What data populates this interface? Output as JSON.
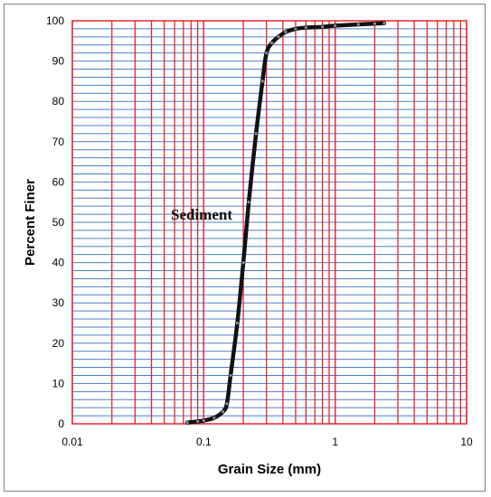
{
  "chart_data": {
    "type": "line",
    "xlabel": "Grain Size (mm)",
    "ylabel": "Percent Finer",
    "xscale": "log",
    "xlim": [
      0.01,
      10
    ],
    "ylim": [
      0,
      100
    ],
    "xticks": [
      0.01,
      0.1,
      1,
      10
    ],
    "xtick_labels": [
      "0.01",
      "0.1",
      "1",
      "10"
    ],
    "yticks": [
      0,
      10,
      20,
      30,
      40,
      50,
      60,
      70,
      80,
      90,
      100
    ],
    "ytick_labels": [
      "0",
      "10",
      "20",
      "30",
      "40",
      "50",
      "60",
      "70",
      "80",
      "90",
      "100"
    ],
    "vertical_grid_color": "#e8262a",
    "horizontal_grid_color": "#4a7fc9",
    "horizontal_grid_step": 2,
    "line_color": "#111111",
    "annotation": "Sediment",
    "annotation_position": "left of the curve, near 55-60% finer",
    "series": [
      {
        "name": "Sediment",
        "x": [
          0.075,
          0.09,
          0.1,
          0.12,
          0.14,
          0.15,
          0.16,
          0.18,
          0.2,
          0.22,
          0.25,
          0.28,
          0.3,
          0.33,
          0.37,
          0.42,
          0.5,
          0.6,
          0.8,
          1.0,
          1.5,
          2.0,
          2.36
        ],
        "y": [
          0.3,
          0.6,
          0.8,
          1.5,
          3.0,
          5.0,
          12.0,
          25.0,
          40.0,
          55.0,
          72.0,
          85.0,
          92.0,
          94.5,
          96.0,
          97.2,
          98.0,
          98.3,
          98.5,
          98.8,
          99.1,
          99.3,
          99.4
        ]
      }
    ]
  }
}
